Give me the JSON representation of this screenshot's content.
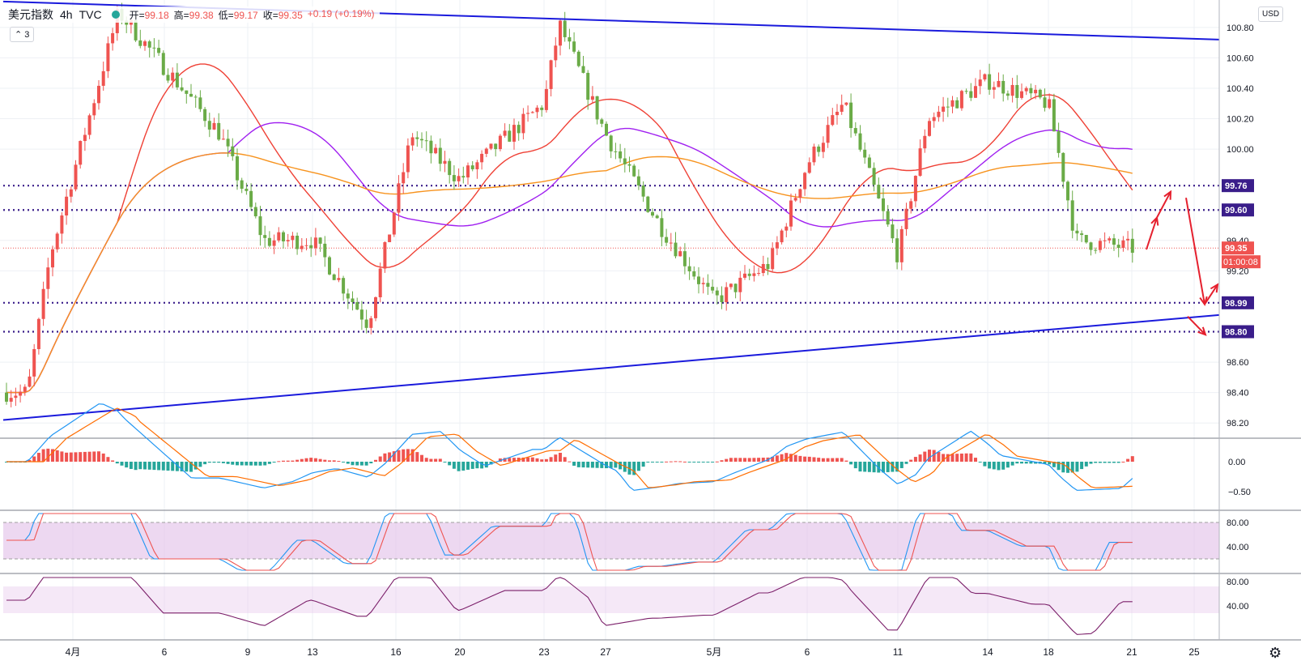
{
  "header": {
    "symbol": "美元指数",
    "interval": "4h",
    "source": "TVC",
    "open_label": "开=",
    "open": "99.18",
    "high_label": "高=",
    "high": "99.38",
    "low_label": "低=",
    "low": "99.17",
    "close_label": "收=",
    "close": "99.35",
    "change": "+0.19 (+0.19%)",
    "indicators_count": "3",
    "currency": "USD"
  },
  "colors": {
    "up": "#ef5350",
    "down": "#6aab47",
    "trendline": "#1a1adc",
    "level": "#3a1d8a",
    "ma_red": "#ef4136",
    "ma_purple": "#a020f0",
    "ma_orange": "#f7931e",
    "annotation": "#e5202e",
    "macd_line": "#2196f3",
    "signal_line": "#ff6d00",
    "hist_pos": "#ef5350",
    "hist_neg": "#26a69a",
    "rsi_band": "#e1bee7"
  },
  "chart_data": {
    "type": "candlestick",
    "title": "美元指数 · 4h · TVC",
    "y_ticks": [
      "100.80",
      "100.60",
      "100.40",
      "100.20",
      "100.00",
      "99.40",
      "99.20",
      "98.60",
      "98.40",
      "98.20"
    ],
    "x_ticks": [
      "4月",
      "6",
      "9",
      "13",
      "16",
      "20",
      "23",
      "27",
      "5月",
      "6",
      "11",
      "14",
      "18",
      "21",
      "25"
    ],
    "horizontal_levels": [
      99.76,
      99.6,
      98.99,
      98.8
    ],
    "current_price": "99.35",
    "countdown": "01:00:08",
    "ylim": [
      98.1,
      100.98
    ],
    "approximate_path": [
      {
        "date": "4月2",
        "price": 98.4
      },
      {
        "date": "4月3",
        "price": 99.3
      },
      {
        "date": "4月5",
        "price": 100.9
      },
      {
        "date": "4月8",
        "price": 100.1
      },
      {
        "date": "4月10",
        "price": 99.4
      },
      {
        "date": "4月13",
        "price": 99.4
      },
      {
        "date": "4月15",
        "price": 98.85
      },
      {
        "date": "4月17",
        "price": 100.1
      },
      {
        "date": "4月20",
        "price": 99.8
      },
      {
        "date": "4月23",
        "price": 100.3
      },
      {
        "date": "4月24",
        "price": 100.82
      },
      {
        "date": "4月27",
        "price": 100.1
      },
      {
        "date": "4月29",
        "price": 99.5
      },
      {
        "date": "5月1",
        "price": 99.0
      },
      {
        "date": "5月4",
        "price": 99.25
      },
      {
        "date": "5月6",
        "price": 99.9
      },
      {
        "date": "5月8",
        "price": 100.3
      },
      {
        "date": "5月11",
        "price": 99.3
      },
      {
        "date": "5月12",
        "price": 100.2
      },
      {
        "date": "5月14",
        "price": 100.45
      },
      {
        "date": "5月18",
        "price": 100.3
      },
      {
        "date": "5月19",
        "price": 99.4
      },
      {
        "date": "5月21",
        "price": 99.35
      }
    ],
    "macd_ticks": [
      "0.00",
      "−0.50"
    ],
    "stoch_ticks": [
      "80.00",
      "40.00"
    ],
    "rsi_ticks": [
      "80.00",
      "40.00"
    ]
  }
}
